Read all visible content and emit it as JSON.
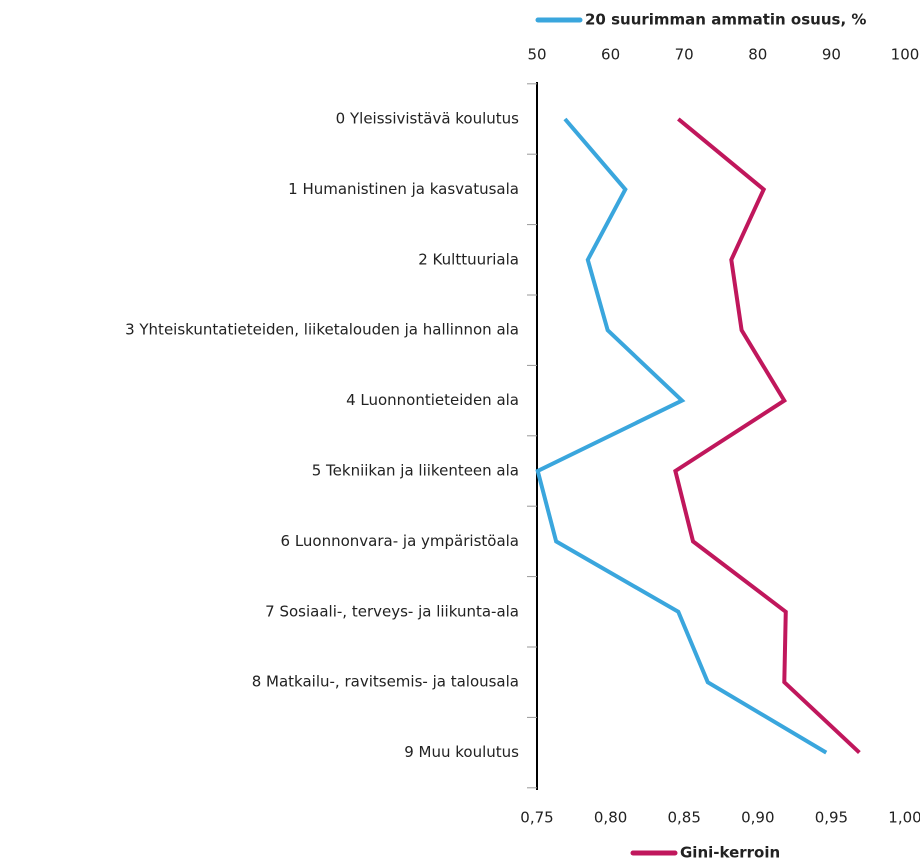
{
  "chart_data": {
    "type": "line",
    "categories": [
      "0 Yleissivistävä koulutus",
      "1 Humanistinen ja kasvatusala",
      "2 Kulttuuriala",
      "3 Yhteiskuntatieteiden, liiketalouden ja hallinnon ala",
      "4 Luonnontieteiden ala",
      "5 Tekniikan ja liikenteen ala",
      "6 Luonnonvara- ja ympäristöala",
      "7 Sosiaali-, terveys- ja liikunta-ala",
      "8 Matkailu-, ravitsemis- ja talousala",
      "9 Muu koulutus"
    ],
    "xlim": [
      50,
      100
    ],
    "xticks": [
      50,
      60,
      70,
      80,
      90,
      100
    ],
    "x2lim": [
      0.75,
      1.0
    ],
    "x2ticks": [
      {
        "value": 0.75,
        "label": "0,75"
      },
      {
        "value": 0.8,
        "label": "0,80"
      },
      {
        "value": 0.85,
        "label": "0,85"
      },
      {
        "value": 0.9,
        "label": "0,90"
      },
      {
        "value": 0.95,
        "label": "0,95"
      },
      {
        "value": 1.0,
        "label": "1,00"
      }
    ],
    "series": [
      {
        "name": "20 suurimman ammatin osuus, %",
        "color": "#3aa6dd",
        "axis": "x",
        "values": [
          53.8,
          62.0,
          56.9,
          59.6,
          69.7,
          50.1,
          52.6,
          69.2,
          73.2,
          89.3
        ]
      },
      {
        "name": "Gini-kerroin",
        "color": "#c0175c",
        "axis": "x2",
        "values": [
          0.846,
          0.904,
          0.882,
          0.889,
          0.918,
          0.844,
          0.856,
          0.919,
          0.918,
          0.969
        ]
      }
    ]
  }
}
